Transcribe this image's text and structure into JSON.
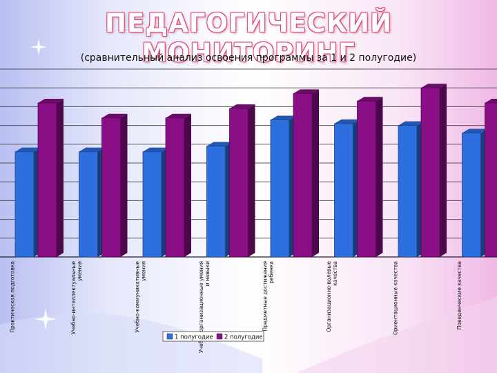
{
  "header": {
    "title": "ПЕДАГОГИЧЕСКИЙ МОНИТОРИНГ",
    "subtitle": "(сравнительный анализ освоения программы за 1 и 2 полугодие)"
  },
  "colors": {
    "series1": "#2e6fe0",
    "series2": "#8a0f86",
    "background_left": "#c8ccf4",
    "background_right": "#f4c8ec",
    "grid": "#333333"
  },
  "chart_data": {
    "type": "bar",
    "categories": [
      "Практическая подготовка",
      "Учебно-интеллектуальные умения",
      "Учебно-коммуникативные умения",
      "Учебно-организационные умения и навыки",
      "Предметные достижения ребенка",
      "Организационно-волевые качества",
      "Ориентационные качества",
      "Поведенческие качества"
    ],
    "series": [
      {
        "name": "1 полугодие",
        "values": [
          5.6,
          5.6,
          5.6,
          5.9,
          7.3,
          7.1,
          7.0,
          6.6
        ]
      },
      {
        "name": "2 полугодие",
        "values": [
          8.2,
          7.4,
          7.4,
          7.9,
          8.7,
          8.3,
          9.0,
          8.2
        ]
      }
    ],
    "ylim": [
      0,
      10
    ],
    "grid": true,
    "legend_position": "bottom"
  }
}
